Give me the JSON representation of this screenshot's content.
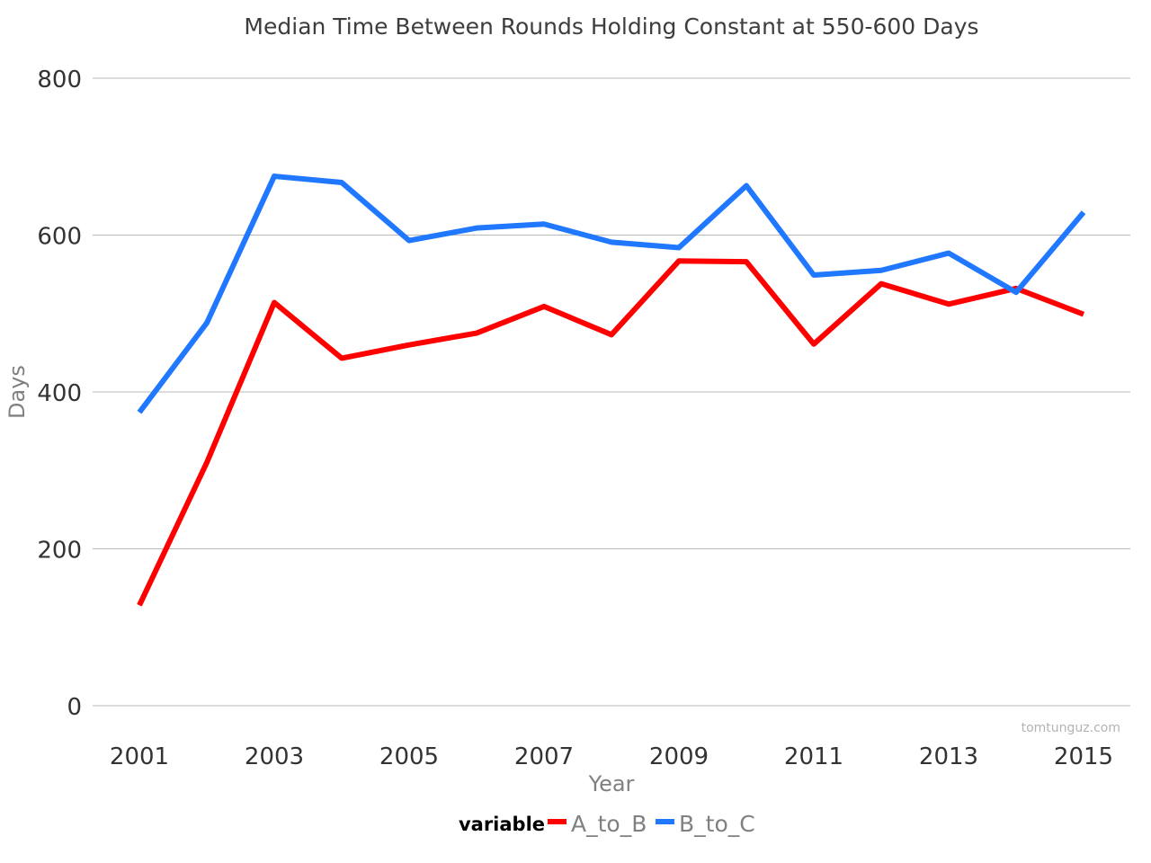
{
  "chart_data": {
    "type": "line",
    "title": "Median Time Between Rounds Holding Constant at 550-600 Days",
    "xlabel": "Year",
    "ylabel": "Days",
    "x": [
      2001,
      2002,
      2003,
      2004,
      2005,
      2006,
      2007,
      2008,
      2009,
      2010,
      2011,
      2012,
      2013,
      2014,
      2015
    ],
    "x_ticks": [
      "2001",
      "2003",
      "2005",
      "2007",
      "2009",
      "2011",
      "2013",
      "2015"
    ],
    "y_ticks": [
      "0",
      "200",
      "400",
      "600",
      "800"
    ],
    "xlim": [
      2001,
      2015
    ],
    "ylim": [
      0,
      800
    ],
    "grid": "horizontal",
    "legend": {
      "title": "variable",
      "placement": "bottom"
    },
    "series": [
      {
        "name": "A_to_B",
        "color": "#ff0000",
        "values": [
          128,
          310,
          514,
          443,
          460,
          475,
          509,
          473,
          567,
          566,
          461,
          538,
          512,
          532,
          499
        ]
      },
      {
        "name": "B_to_C",
        "color": "#1f78ff",
        "values": [
          374,
          488,
          675,
          667,
          593,
          609,
          614,
          591,
          584,
          663,
          549,
          555,
          577,
          527,
          629
        ]
      }
    ]
  },
  "watermark": "tomtunguz.com"
}
